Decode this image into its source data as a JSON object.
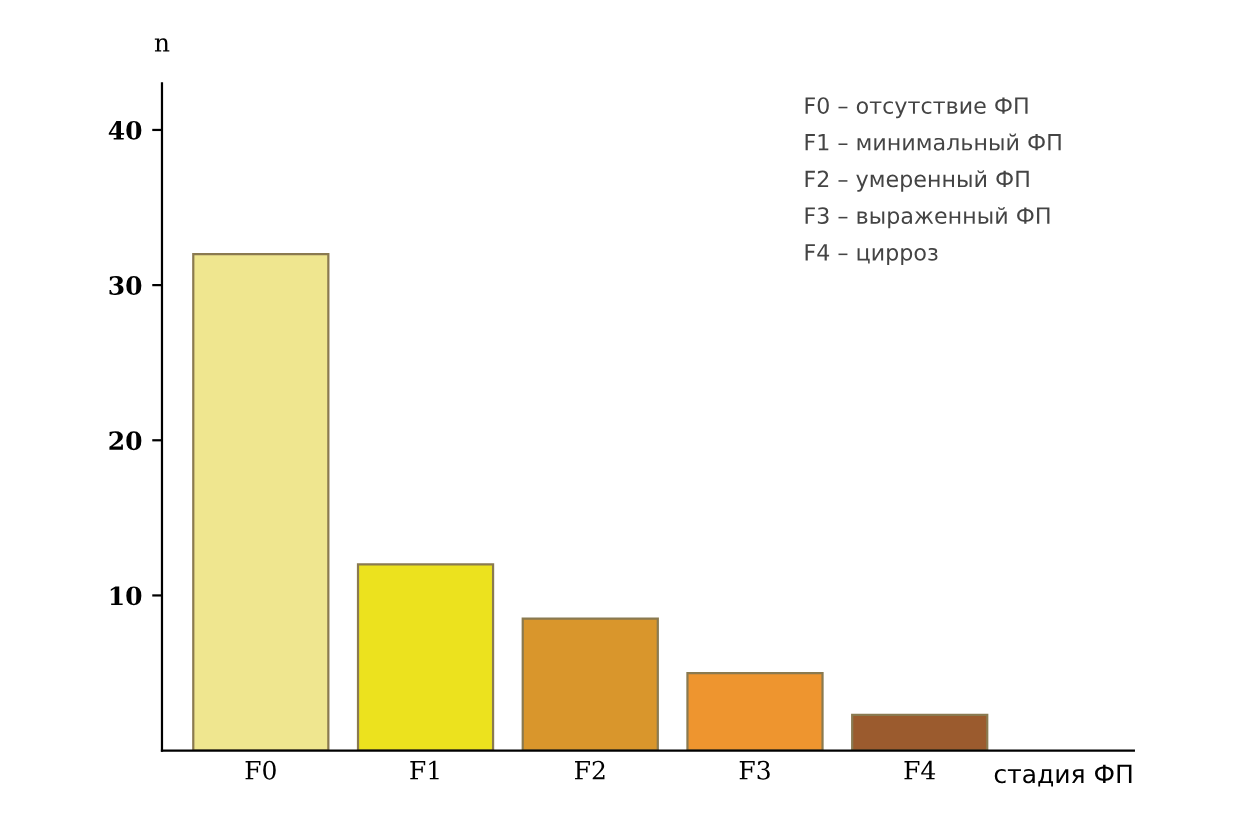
{
  "chart_data": {
    "type": "bar",
    "categories": [
      "F0",
      "F1",
      "F2",
      "F3",
      "F4"
    ],
    "values": [
      32,
      12,
      8.5,
      5,
      2.3
    ],
    "colors": [
      "#efe68f",
      "#ece21e",
      "#d9962c",
      "#ee952f",
      "#9b5b2e"
    ],
    "ylabel": "n",
    "xlabel": "стадия ФП",
    "ylim": [
      0,
      43
    ],
    "yticks": [
      10,
      20,
      30,
      40
    ],
    "grid": false,
    "annotations": [
      "F0 – отсутствие ФП",
      "F1 – минимальный ФП",
      "F2 – умеренный ФП",
      "F3 – выраженный ФП",
      "F4 – цирроз"
    ]
  }
}
